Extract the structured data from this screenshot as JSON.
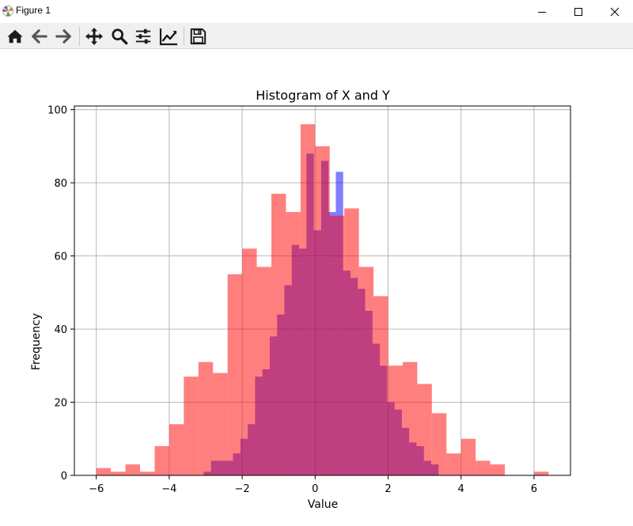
{
  "window": {
    "title": "Figure 1",
    "app_icon": "matplotlib-icon",
    "controls": [
      "minimize-icon",
      "maximize-icon",
      "close-icon"
    ]
  },
  "toolbar": {
    "buttons": [
      {
        "name": "home",
        "icon": "home-icon"
      },
      {
        "name": "back",
        "icon": "arrow-left-icon"
      },
      {
        "name": "forward",
        "icon": "arrow-right-icon"
      },
      {
        "name": "pan",
        "icon": "move-icon"
      },
      {
        "name": "zoom",
        "icon": "magnifier-icon"
      },
      {
        "name": "configure-subplots",
        "icon": "sliders-icon"
      },
      {
        "name": "edit-axis",
        "icon": "chart-line-icon"
      },
      {
        "name": "save",
        "icon": "floppy-disk-icon"
      }
    ]
  },
  "chart_data": {
    "type": "bar",
    "title": "Histogram of X and Y",
    "xlabel": "Value",
    "ylabel": "Frequency",
    "xlim": [
      -6.6,
      7.0
    ],
    "ylim": [
      0,
      101
    ],
    "xticks": [
      -6,
      -4,
      -2,
      0,
      2,
      4,
      6
    ],
    "xtick_labels": [
      "−6",
      "−4",
      "−2",
      "0",
      "2",
      "4",
      "6"
    ],
    "yticks": [
      0,
      20,
      40,
      60,
      80,
      100
    ],
    "ytick_labels": [
      "0",
      "20",
      "40",
      "60",
      "80",
      "100"
    ],
    "grid": true,
    "colors": {
      "blue": "#0000ff",
      "red": "#ff0000",
      "grid": "#b0b0b0"
    },
    "alpha": 0.5,
    "series": [
      {
        "color": "#0000ff",
        "bin_start": -3.055,
        "bin_width": 0.2012,
        "values": [
          1,
          4,
          4,
          4,
          6,
          10,
          14,
          27,
          29,
          38,
          44,
          52,
          63,
          62,
          88,
          67,
          86,
          72,
          83,
          56,
          54,
          51,
          45,
          36,
          30,
          20,
          18,
          13,
          9,
          8,
          4,
          3
        ]
      },
      {
        "color": "#ff0000",
        "bin_start": -6.0,
        "bin_width": 0.4,
        "values": [
          2,
          1,
          3,
          1,
          8,
          14,
          27,
          31,
          28,
          55,
          62,
          57,
          77,
          72,
          96,
          90,
          71,
          73,
          57,
          49,
          30,
          31,
          25,
          17,
          6,
          10,
          4,
          3,
          0,
          0,
          1
        ]
      }
    ]
  }
}
